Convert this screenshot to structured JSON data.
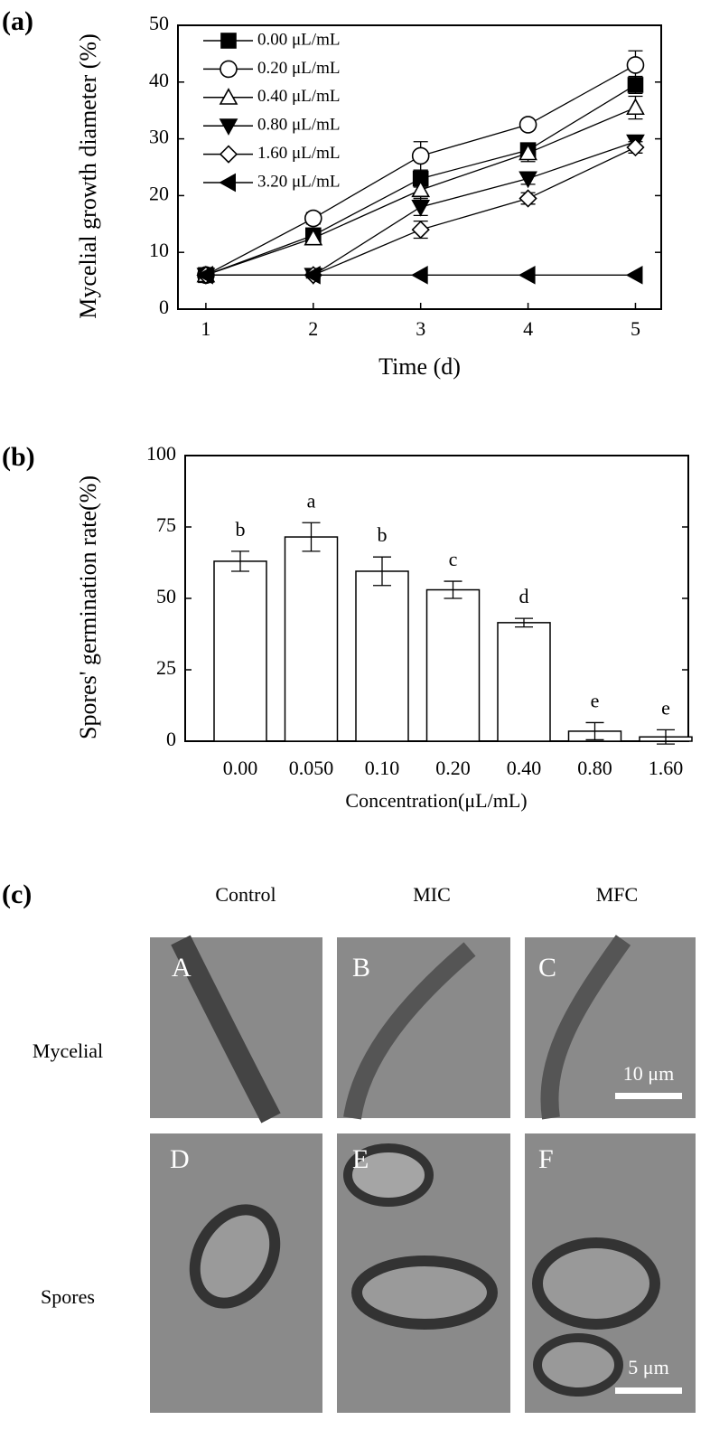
{
  "chart_data": [
    {
      "type": "line",
      "panel": "(a)",
      "ylabel": "Mycelial growth diameter (%)",
      "xlabel": "Time (d)",
      "x": [
        1,
        2,
        3,
        4,
        5
      ],
      "xlim": [
        0.74,
        5.24
      ],
      "xticks": [
        1,
        2,
        3,
        4,
        5
      ],
      "ylim": [
        0,
        50
      ],
      "yticks": [
        0,
        10,
        20,
        30,
        40,
        50
      ],
      "legend": "upper left",
      "series": [
        {
          "name": "0.00 μL/mL",
          "color": "#000000",
          "marker": "square-filled",
          "values": [
            6,
            13,
            23,
            28,
            39.5
          ],
          "errors": [
            0.3,
            1,
            1.5,
            1,
            1.5
          ]
        },
        {
          "name": "0.20 μL/mL",
          "color": "#000000",
          "marker": "circle-open",
          "values": [
            6,
            16,
            27,
            32.5,
            43
          ],
          "errors": [
            0.3,
            1,
            2.5,
            0.8,
            2.5
          ]
        },
        {
          "name": "0.40 μL/mL",
          "color": "#000000",
          "marker": "triangle-up-open",
          "values": [
            6,
            12.5,
            21,
            27.5,
            35.5
          ],
          "errors": [
            0.3,
            1,
            1.5,
            1.5,
            2
          ]
        },
        {
          "name": "0.80 μL/mL",
          "color": "#000000",
          "marker": "triangle-down-filled",
          "values": [
            6,
            6,
            18,
            23,
            29.5
          ],
          "errors": [
            0.3,
            0.5,
            1.5,
            1,
            1
          ]
        },
        {
          "name": "1.60 μL/mL",
          "color": "#000000",
          "marker": "diamond-open",
          "values": [
            6,
            6,
            14,
            19.5,
            28.5
          ],
          "errors": [
            0.3,
            0.5,
            1.5,
            1,
            1
          ]
        },
        {
          "name": "3.20 μL/mL",
          "color": "#000000",
          "marker": "triangle-left-filled",
          "values": [
            6,
            6,
            6,
            6,
            6
          ]
        }
      ]
    },
    {
      "type": "bar",
      "panel": "(b)",
      "ylabel": "Spores' germination rate(%)",
      "xlabel": "Concentration(μL/mL)",
      "categories": [
        "0.00",
        "0.050",
        "0.10",
        "0.20",
        "0.40",
        "0.80",
        "1.60"
      ],
      "values": [
        63,
        71.5,
        59.5,
        53,
        41.5,
        3.5,
        1.5
      ],
      "errors": [
        3.5,
        5,
        5,
        3,
        1.5,
        3,
        2.5
      ],
      "annotations": [
        "b",
        "a",
        "b",
        "c",
        "d",
        "e",
        "e"
      ],
      "color": "#ffffff",
      "ylim": [
        0,
        100
      ],
      "yticks": [
        0,
        25,
        50,
        75,
        100
      ]
    }
  ],
  "micrographs": {
    "panel": "(c)",
    "columns": [
      "Control",
      "MIC",
      "MFC"
    ],
    "rows": [
      "Mycelial",
      "Spores"
    ],
    "letters": [
      "A",
      "B",
      "C",
      "D",
      "E",
      "F"
    ],
    "scale_bars": [
      "10 μm",
      "5 μm"
    ]
  }
}
